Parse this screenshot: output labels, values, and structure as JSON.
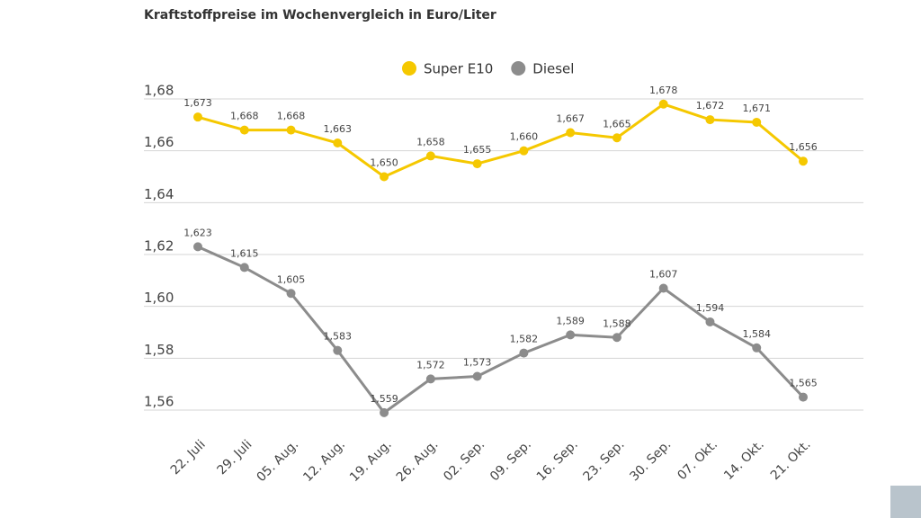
{
  "chart_data": {
    "type": "line",
    "title": "Kraftstoffpreise im Wochenvergleich in Euro/Liter",
    "categories": [
      "22. Juli",
      "29. Juli",
      "05. Aug.",
      "12. Aug.",
      "19. Aug.",
      "26. Aug.",
      "02. Sep.",
      "09. Sep.",
      "16. Sep.",
      "23. Sep.",
      "30. Sep.",
      "07. Okt.",
      "14. Okt.",
      "21. Okt."
    ],
    "series": [
      {
        "name": "Super E10",
        "color": "#f5c800",
        "values": [
          1.673,
          1.668,
          1.668,
          1.663,
          1.65,
          1.658,
          1.655,
          1.66,
          1.667,
          1.665,
          1.678,
          1.672,
          1.671,
          1.656
        ],
        "value_labels": [
          "1,673",
          "1,668",
          "1,668",
          "1,663",
          "1,650",
          "1,658",
          "1,655",
          "1,660",
          "1,667",
          "1,665",
          "1,678",
          "1,672",
          "1,671",
          "1,656"
        ]
      },
      {
        "name": "Diesel",
        "color": "#8c8c8c",
        "values": [
          1.623,
          1.615,
          1.605,
          1.583,
          1.559,
          1.572,
          1.573,
          1.582,
          1.589,
          1.588,
          1.607,
          1.594,
          1.584,
          1.565
        ],
        "value_labels": [
          "1,623",
          "1,615",
          "1,605",
          "1,583",
          "1,559",
          "1,572",
          "1,573",
          "1,582",
          "1,589",
          "1,588",
          "1,607",
          "1,594",
          "1,584",
          "1,565"
        ]
      }
    ],
    "ylim": [
      1.56,
      1.68
    ],
    "yticks": [
      {
        "value": 1.56,
        "label": "1,56"
      },
      {
        "value": 1.58,
        "label": "1,58"
      },
      {
        "value": 1.6,
        "label": "1,60"
      },
      {
        "value": 1.62,
        "label": "1,62"
      },
      {
        "value": 1.64,
        "label": "1,64"
      },
      {
        "value": 1.66,
        "label": "1,66"
      },
      {
        "value": 1.68,
        "label": "1,68"
      }
    ],
    "grid": true,
    "legend": "top"
  }
}
